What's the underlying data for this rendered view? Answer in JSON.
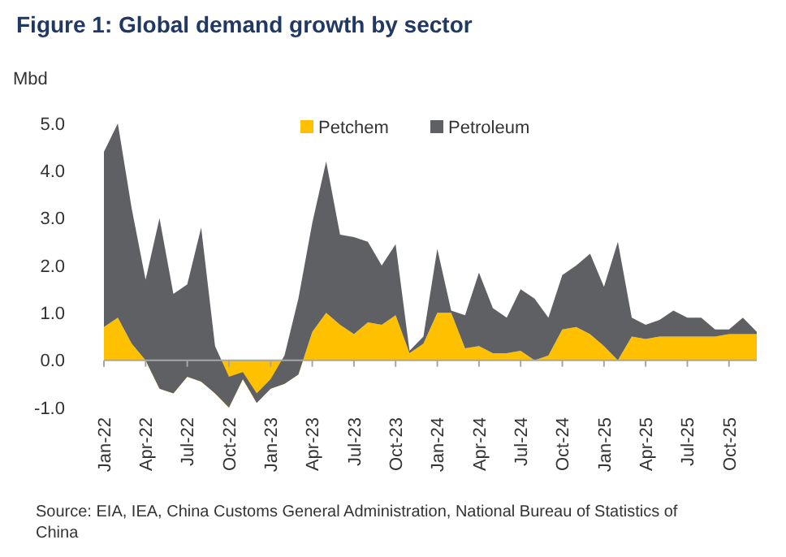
{
  "chart_data": {
    "type": "area",
    "stacked": true,
    "title": "Figure 1: Global demand growth by sector",
    "ylabel": "Mbd",
    "categories": [
      "Jan-22",
      null,
      null,
      "Apr-22",
      null,
      null,
      "Jul-22",
      null,
      null,
      "Oct-22",
      null,
      null,
      "Jan-23",
      null,
      null,
      "Apr-23",
      null,
      null,
      "Jul-23",
      null,
      null,
      "Oct-23",
      null,
      null,
      "Jan-24",
      null,
      null,
      "Apr-24",
      null,
      null,
      "Jul-24",
      null,
      null,
      "Oct-24",
      null,
      null,
      "Jan-25",
      null,
      null,
      "Apr-25",
      null,
      null,
      "Jul-25",
      null,
      null,
      "Oct-25",
      null,
      null
    ],
    "series": [
      {
        "name": "Petchem",
        "color": "#ffc000",
        "values": [
          0.7,
          0.9,
          0.35,
          0,
          -0.6,
          -0.7,
          -0.35,
          -0.45,
          -0.7,
          -1.0,
          -0.4,
          -0.9,
          -0.6,
          -0.5,
          -0.3,
          0.6,
          1.0,
          0.75,
          0.55,
          0.8,
          0.75,
          0.95,
          0.15,
          0.35,
          1.0,
          1.0,
          0.25,
          0.3,
          0.15,
          0.15,
          0.2,
          0,
          0.1,
          0.65,
          0.7,
          0.55,
          0.3,
          0,
          0.5,
          0.45,
          0.5,
          0.5,
          0.5,
          0.5,
          0.5,
          0.55,
          0.55,
          0.55
        ]
      },
      {
        "name": "Petroleum",
        "color": "#5f6064",
        "values": [
          3.7,
          4.1,
          2.85,
          1.7,
          3.6,
          2.1,
          1.95,
          3.25,
          1.0,
          0.65,
          0.15,
          0.2,
          0.2,
          0.6,
          1.6,
          2.3,
          3.2,
          1.9,
          2.05,
          1.7,
          1.25,
          1.5,
          0.05,
          0.15,
          1.35,
          0.05,
          0.7,
          1.55,
          0.95,
          0.75,
          1.3,
          1.3,
          0.8,
          1.15,
          1.3,
          1.7,
          1.25,
          2.5,
          0.4,
          0.3,
          0.35,
          0.55,
          0.4,
          0.4,
          0.15,
          0.1,
          0.35,
          0.05
        ]
      }
    ],
    "ylim": [
      -1.0,
      5.0
    ],
    "yticks": [
      {
        "value": -1,
        "label": "-1.0"
      },
      {
        "value": 0,
        "label": "0.0"
      },
      {
        "value": 1,
        "label": "1.0"
      },
      {
        "value": 2,
        "label": "2.0"
      },
      {
        "value": 3,
        "label": "3.0"
      },
      {
        "value": 4,
        "label": "4.0"
      },
      {
        "value": 5,
        "label": "5.0"
      }
    ],
    "legend": "top",
    "annotations": [
      "Source: EIA, IEA, China Customs General Administration, National Bureau of Statistics of China"
    ]
  }
}
